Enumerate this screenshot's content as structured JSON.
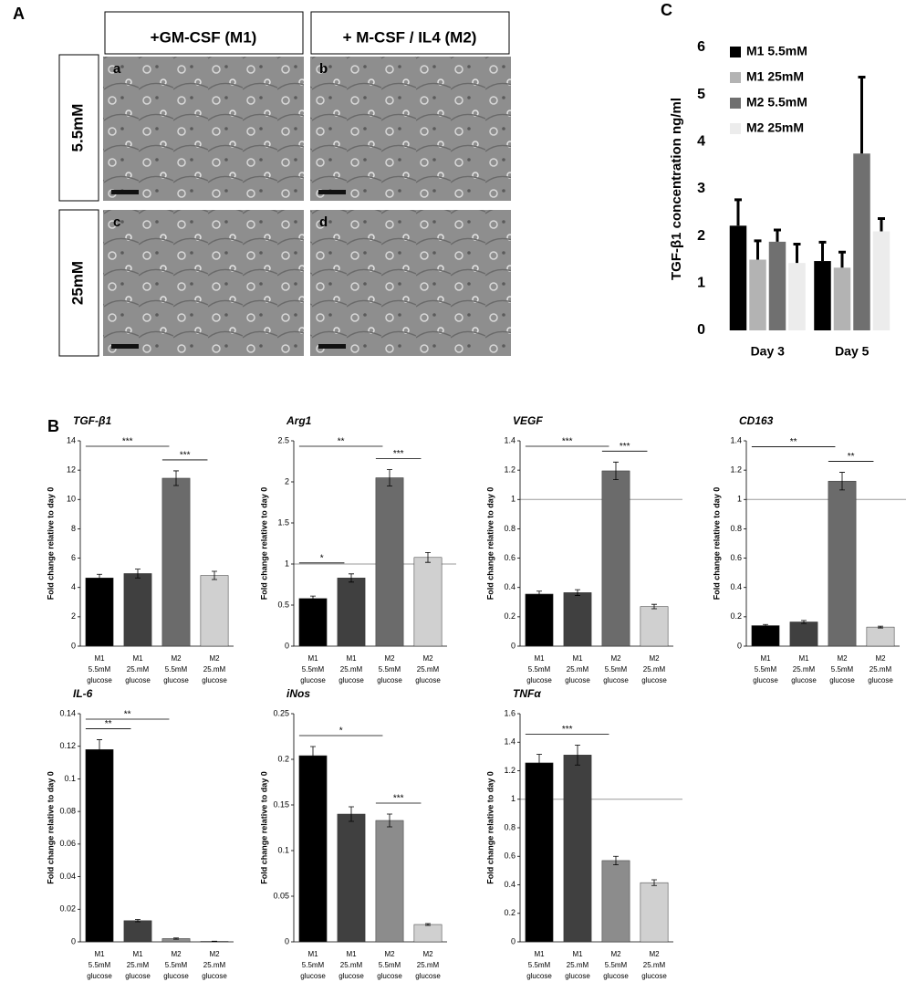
{
  "panel_labels": [
    "A",
    "B",
    "C"
  ],
  "images": {
    "columns": [
      "+GM-CSF (M1)",
      "+ M-CSF / IL4 (M2)"
    ],
    "rows": [
      "5.5mM",
      "25mM"
    ],
    "tiles": [
      "a",
      "b",
      "c",
      "d"
    ]
  },
  "chart_data": [
    {
      "type": "grouped_bar",
      "ylabel": "TGF-β1 concentration ng/ml",
      "categories": [
        "Day 3",
        "Day 5"
      ],
      "ylim": [
        0,
        6
      ],
      "yticks": [
        0,
        1,
        2,
        3,
        4,
        5,
        6
      ],
      "series": [
        {
          "name": "M1 5.5mM",
          "color": "#000000",
          "values": [
            2.22,
            1.47
          ],
          "errors": [
            0.55,
            0.4
          ]
        },
        {
          "name": "M1 25mM",
          "color": "#b3b3b3",
          "values": [
            1.5,
            1.33
          ],
          "errors": [
            0.4,
            0.33
          ]
        },
        {
          "name": "M2 5.5mM",
          "color": "#707070",
          "values": [
            1.88,
            3.75
          ],
          "errors": [
            0.25,
            1.62
          ]
        },
        {
          "name": "M2 25mM",
          "color": "#ececec",
          "values": [
            1.43,
            2.1
          ],
          "errors": [
            0.4,
            0.27
          ]
        }
      ]
    },
    {
      "type": "bar",
      "title": "TGF-β1",
      "ylabel": "Fold change relative to day 0",
      "categories": [
        [
          "M1",
          "5.5mM",
          "glucose"
        ],
        [
          "M1",
          "25.mM",
          "glucose"
        ],
        [
          "M2",
          "5.5mM",
          "glucose"
        ],
        [
          "M2",
          "25.mM",
          "glucose"
        ]
      ],
      "values": [
        4.65,
        4.95,
        11.45,
        4.82
      ],
      "errors": [
        0.25,
        0.3,
        0.5,
        0.28
      ],
      "colors": [
        "#000000",
        "#404040",
        "#6b6b6b",
        "#d0d0d0"
      ],
      "ylim": [
        0,
        14
      ],
      "yticks": [
        0,
        2,
        4,
        6,
        8,
        10,
        12,
        14
      ],
      "brackets": [
        {
          "label": "***",
          "bars": [
            2,
            3
          ]
        },
        {
          "label": "***",
          "bars": [
            0,
            2
          ]
        }
      ]
    },
    {
      "type": "bar",
      "title": "Arg1",
      "ylabel": "Fold change relative to day 0",
      "categories": [
        [
          "M1",
          "5.5mM",
          "glucose"
        ],
        [
          "M1",
          "25.mM",
          "glucose"
        ],
        [
          "M2",
          "5.5mM",
          "glucose"
        ],
        [
          "M2",
          "25.mM",
          "glucose"
        ]
      ],
      "values": [
        0.58,
        0.83,
        2.05,
        1.08
      ],
      "errors": [
        0.03,
        0.05,
        0.1,
        0.06
      ],
      "colors": [
        "#000000",
        "#404040",
        "#6b6b6b",
        "#d0d0d0"
      ],
      "ylim": [
        0,
        2.5
      ],
      "yticks": [
        0,
        0.5,
        1,
        1.5,
        2,
        2.5
      ],
      "reference_line": 1,
      "brackets": [
        {
          "label": "*",
          "bars": [
            0,
            1
          ]
        },
        {
          "label": "***",
          "bars": [
            2,
            3
          ]
        },
        {
          "label": "**",
          "bars": [
            0,
            2
          ]
        }
      ]
    },
    {
      "type": "bar",
      "title": "VEGF",
      "ylabel": "Fold change relative to day 0",
      "categories": [
        [
          "M1",
          "5.5mM",
          "glucose"
        ],
        [
          "M1",
          "25.mM",
          "glucose"
        ],
        [
          "M2",
          "5.5mM",
          "glucose"
        ],
        [
          "M2",
          "25.mM",
          "glucose"
        ]
      ],
      "values": [
        0.355,
        0.365,
        1.195,
        0.27
      ],
      "errors": [
        0.02,
        0.02,
        0.06,
        0.015
      ],
      "colors": [
        "#000000",
        "#404040",
        "#6b6b6b",
        "#d0d0d0"
      ],
      "ylim": [
        0,
        1.4
      ],
      "yticks": [
        0,
        0.2,
        0.4,
        0.6,
        0.8,
        1,
        1.2,
        1.4
      ],
      "reference_line": 1,
      "brackets": [
        {
          "label": "***",
          "bars": [
            2,
            3
          ]
        },
        {
          "label": "***",
          "bars": [
            0,
            2
          ]
        }
      ]
    },
    {
      "type": "bar",
      "title": "CD163",
      "ylabel": "Fold change relative to day 0",
      "categories": [
        [
          "M1",
          "5.5mM",
          "glucose"
        ],
        [
          "M1",
          "25.mM",
          "glucose"
        ],
        [
          "M2",
          "5.5mM",
          "glucose"
        ],
        [
          "M2",
          "25.mM",
          "glucose"
        ]
      ],
      "values": [
        0.14,
        0.165,
        1.125,
        0.13
      ],
      "errors": [
        0.008,
        0.01,
        0.06,
        0.006
      ],
      "colors": [
        "#000000",
        "#404040",
        "#6b6b6b",
        "#d0d0d0"
      ],
      "ylim": [
        0,
        1.4
      ],
      "yticks": [
        0,
        0.2,
        0.4,
        0.6,
        0.8,
        1,
        1.2,
        1.4
      ],
      "reference_line": 1,
      "brackets": [
        {
          "label": "**",
          "bars": [
            2,
            3
          ]
        },
        {
          "label": "**",
          "bars": [
            0,
            2
          ]
        }
      ]
    },
    {
      "type": "bar",
      "title": "IL-6",
      "ylabel": "Fold change relative to day 0",
      "categories": [
        [
          "M1",
          "5.5mM",
          "glucose"
        ],
        [
          "M1",
          "25.mM",
          "glucose"
        ],
        [
          "M2",
          "5.5mM",
          "glucose"
        ],
        [
          "M2",
          "25.mM",
          "glucose"
        ]
      ],
      "values": [
        0.118,
        0.013,
        0.002,
        0.0003
      ],
      "errors": [
        0.006,
        0.0007,
        0.0004,
        0.0001
      ],
      "colors": [
        "#000000",
        "#404040",
        "#8c8c8c",
        "#d0d0d0"
      ],
      "ylim": [
        0,
        0.14
      ],
      "yticks": [
        0,
        0.02,
        0.04,
        0.06,
        0.08,
        0.1,
        0.12,
        0.14
      ],
      "brackets": [
        {
          "label": "**",
          "bars": [
            0,
            1
          ]
        },
        {
          "label": "**",
          "bars": [
            0,
            2
          ]
        }
      ]
    },
    {
      "type": "bar",
      "title": "iNos",
      "ylabel": "Fold change relative to day 0",
      "categories": [
        [
          "M1",
          "5.5mM",
          "glucose"
        ],
        [
          "M1",
          "25.mM",
          "glucose"
        ],
        [
          "M2",
          "5.5mM",
          "glucose"
        ],
        [
          "M2",
          "25.mM",
          "glucose"
        ]
      ],
      "values": [
        0.204,
        0.14,
        0.133,
        0.019
      ],
      "errors": [
        0.01,
        0.008,
        0.007,
        0.001
      ],
      "colors": [
        "#000000",
        "#404040",
        "#8c8c8c",
        "#d0d0d0"
      ],
      "ylim": [
        0,
        0.25
      ],
      "yticks": [
        0,
        0.05,
        0.1,
        0.15,
        0.2,
        0.25
      ],
      "brackets": [
        {
          "label": "***",
          "bars": [
            2,
            3
          ]
        },
        {
          "label": "*",
          "bars": [
            0,
            2
          ]
        }
      ]
    },
    {
      "type": "bar",
      "title": "TNFα",
      "ylabel": "Fold change relative to day 0",
      "categories": [
        [
          "M1",
          "5.5mM",
          "glucose"
        ],
        [
          "M1",
          "25.mM",
          "glucose"
        ],
        [
          "M2",
          "5.5mM",
          "glucose"
        ],
        [
          "M2",
          "25.mM",
          "glucose"
        ]
      ],
      "values": [
        1.255,
        1.31,
        0.57,
        0.415
      ],
      "errors": [
        0.06,
        0.07,
        0.03,
        0.02
      ],
      "colors": [
        "#000000",
        "#404040",
        "#8c8c8c",
        "#d0d0d0"
      ],
      "ylim": [
        0,
        1.6
      ],
      "yticks": [
        0,
        0.2,
        0.4,
        0.6,
        0.8,
        1,
        1.2,
        1.4,
        1.6
      ],
      "reference_line": 1,
      "brackets": [
        {
          "label": "***",
          "bars": [
            0,
            2
          ]
        }
      ]
    }
  ]
}
